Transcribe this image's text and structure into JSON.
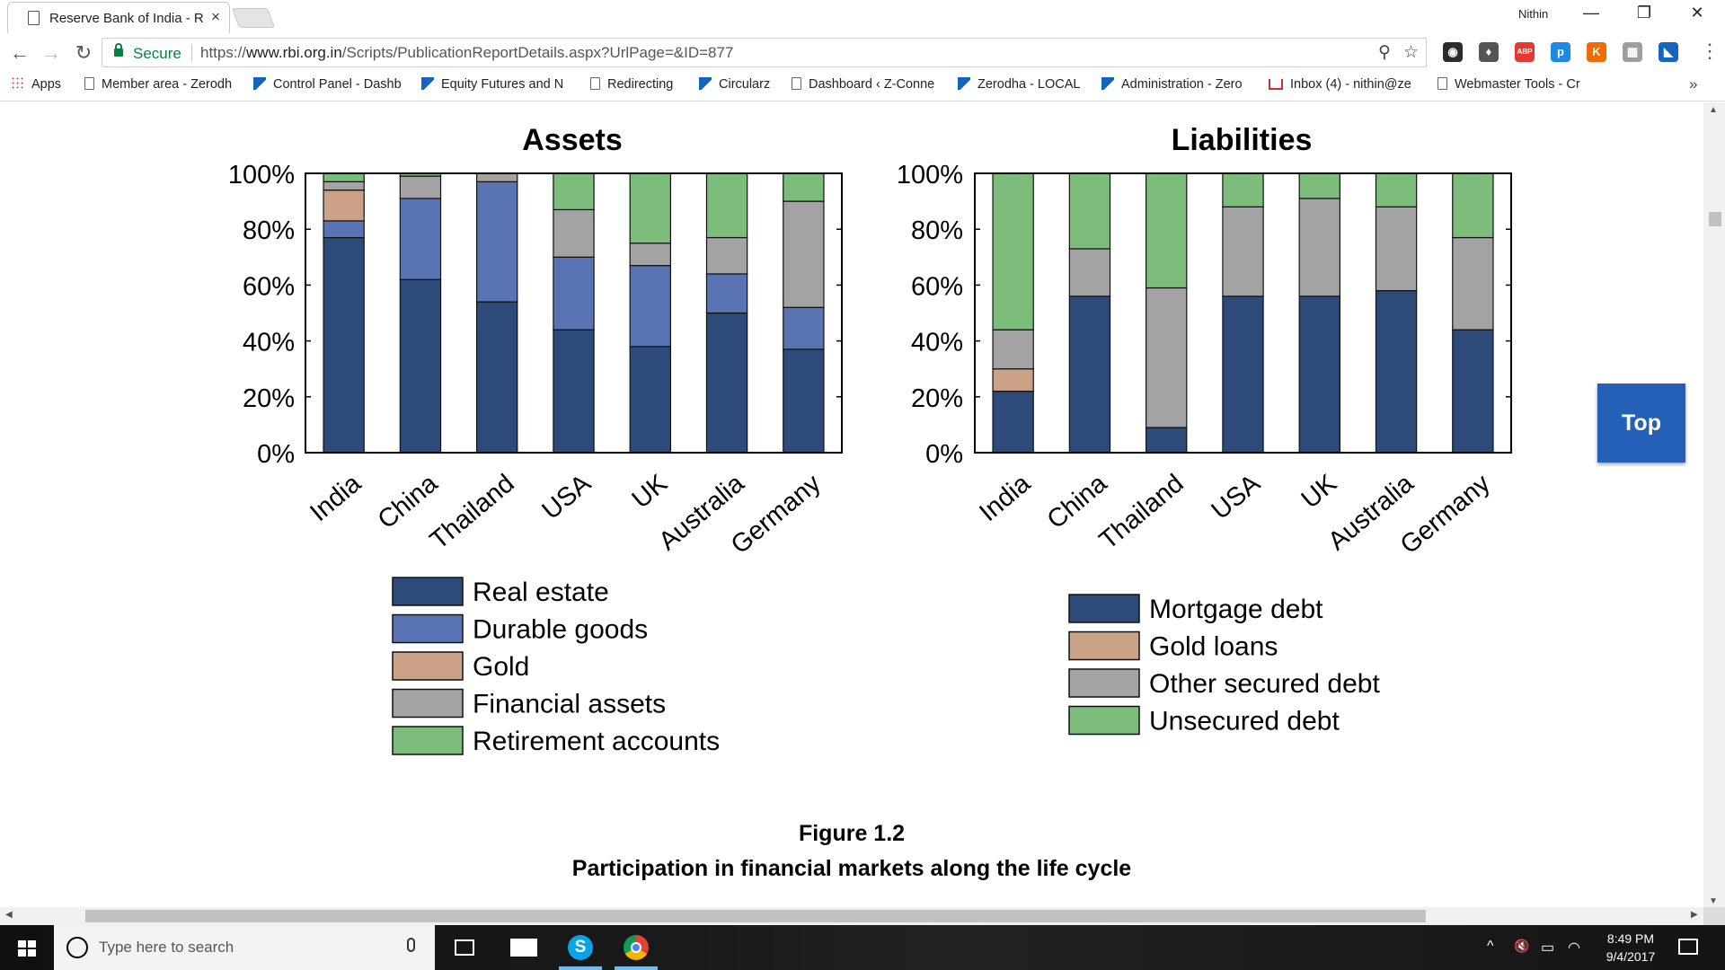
{
  "browser": {
    "tab_title": "Reserve Bank of India - R",
    "tab_close": "×",
    "user": "Nithin",
    "window_controls": {
      "minimize": "—",
      "restore": "❐",
      "close": "✕"
    },
    "nav": {
      "back": "←",
      "forward": "→",
      "reload": "↻"
    },
    "secure_label": "Secure",
    "url_scheme": "https://",
    "url_host": "www.rbi.org.in",
    "url_path": "/Scripts/PublicationReportDetails.aspx?UrlPage=&ID=877",
    "zoom_icon": "⚲",
    "star_icon": "☆",
    "extensions": [
      {
        "name": "circle-extension-icon",
        "label": "◉",
        "color": "#2b2b2b"
      },
      {
        "name": "shield-extension-icon",
        "label": "♦",
        "color": "#555555"
      },
      {
        "name": "adblock-icon",
        "label": "ABP",
        "color": "#e53935"
      },
      {
        "name": "p-extension-icon",
        "label": "p",
        "color": "#1e88e5"
      },
      {
        "name": "k-extension-icon",
        "label": "K",
        "color": "#ef6c00"
      },
      {
        "name": "grid-extension-icon",
        "label": "▦",
        "color": "#9e9e9e"
      },
      {
        "name": "docs-extension-icon",
        "label": "◣",
        "color": "#1565c0"
      }
    ],
    "menu": "⋮"
  },
  "bookmarks": [
    {
      "label": "Apps",
      "icon": "apps"
    },
    {
      "label": "Member area - Zerodh",
      "icon": "doc"
    },
    {
      "label": "Control Panel - Dashb",
      "icon": "blue"
    },
    {
      "label": "Equity Futures and N",
      "icon": "blue"
    },
    {
      "label": "Redirecting",
      "icon": "doc"
    },
    {
      "label": "Circularz",
      "icon": "blue"
    },
    {
      "label": "Dashboard ‹ Z-Conne",
      "icon": "doc"
    },
    {
      "label": "Zerodha - LOCAL",
      "icon": "blue"
    },
    {
      "label": "Administration - Zero",
      "icon": "blue"
    },
    {
      "label": "Inbox (4) - nithin@ze",
      "icon": "gmail"
    },
    {
      "label": "Webmaster Tools - Cr",
      "icon": "doc"
    }
  ],
  "bookmarks_more": "»",
  "figure": {
    "title": "Figure 1.2",
    "subtitle": "Participation in financial markets along the life cycle"
  },
  "top_button": "Top",
  "chart_data": [
    {
      "type": "bar",
      "stacked": true,
      "title": "Assets",
      "categories": [
        "India",
        "China",
        "Thailand",
        "USA",
        "UK",
        "Australia",
        "Germany"
      ],
      "ylim": [
        0,
        100
      ],
      "yticks": [
        "0%",
        "20%",
        "40%",
        "60%",
        "80%",
        "100%"
      ],
      "legend_position": "bottom",
      "series": [
        {
          "name": "Real estate",
          "color": "#2e4a78",
          "values": [
            77,
            62,
            54,
            44,
            38,
            50,
            37
          ]
        },
        {
          "name": "Durable goods",
          "color": "#5a73b3",
          "values": [
            6,
            29,
            43,
            26,
            29,
            14,
            15
          ]
        },
        {
          "name": "Gold",
          "color": "#c9a287",
          "values": [
            11,
            0,
            0,
            0,
            0,
            0,
            0
          ]
        },
        {
          "name": "Financial assets",
          "color": "#a3a3a3",
          "values": [
            3,
            8,
            3,
            17,
            8,
            13,
            38
          ]
        },
        {
          "name": "Retirement accounts",
          "color": "#7cbd7c",
          "values": [
            3,
            1,
            0,
            13,
            25,
            23,
            10
          ]
        }
      ]
    },
    {
      "type": "bar",
      "stacked": true,
      "title": "Liabilities",
      "categories": [
        "India",
        "China",
        "Thailand",
        "USA",
        "UK",
        "Australia",
        "Germany"
      ],
      "ylim": [
        0,
        100
      ],
      "yticks": [
        "0%",
        "20%",
        "40%",
        "60%",
        "80%",
        "100%"
      ],
      "legend_position": "bottom",
      "series": [
        {
          "name": "Mortgage debt",
          "color": "#2e4a78",
          "values": [
            22,
            56,
            9,
            56,
            56,
            58,
            44
          ]
        },
        {
          "name": "Gold loans",
          "color": "#c9a287",
          "values": [
            8,
            0,
            0,
            0,
            0,
            0,
            0
          ]
        },
        {
          "name": "Other secured debt",
          "color": "#a3a3a3",
          "values": [
            14,
            17,
            50,
            32,
            35,
            30,
            33
          ]
        },
        {
          "name": "Unsecured debt",
          "color": "#7cbd7c",
          "values": [
            56,
            27,
            41,
            12,
            9,
            12,
            23
          ]
        }
      ]
    }
  ],
  "taskbar": {
    "search_placeholder": "Type here to search",
    "skype_badge": "S",
    "tray": {
      "chevron": "^",
      "volume": "🔇",
      "battery": "▭",
      "wifi": "◠"
    },
    "time": "8:49 PM",
    "date": "9/4/2017"
  }
}
